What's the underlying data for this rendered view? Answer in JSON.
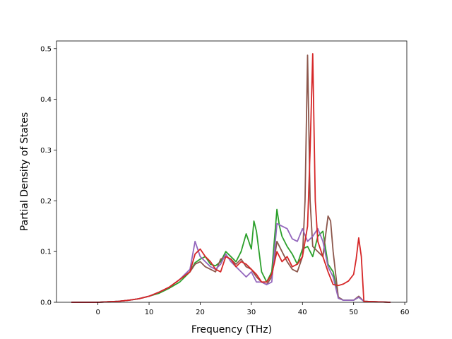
{
  "chart_data": {
    "type": "line",
    "xlabel": "Frequency (THz)",
    "ylabel": "Partial Density of States",
    "xlim": [
      -8.1,
      60.4
    ],
    "ylim": [
      0,
      0.515
    ],
    "xticks": [
      0,
      10,
      20,
      30,
      40,
      50,
      60
    ],
    "yticks": [
      0.0,
      0.1,
      0.2,
      0.3,
      0.4,
      0.5
    ],
    "xtick_labels": [
      "0",
      "10",
      "20",
      "30",
      "40",
      "50",
      "60"
    ],
    "ytick_labels": [
      "0.0",
      "0.1",
      "0.2",
      "0.3",
      "0.4",
      "0.5"
    ],
    "grid": false,
    "legend": "none",
    "series": [
      {
        "color": "#2ca02c",
        "points": [
          [
            -5.2,
            0
          ],
          [
            0,
            0
          ],
          [
            2,
            0.001
          ],
          [
            4,
            0.002
          ],
          [
            6,
            0.004
          ],
          [
            8,
            0.007
          ],
          [
            10,
            0.012
          ],
          [
            12,
            0.018
          ],
          [
            14,
            0.028
          ],
          [
            16,
            0.04
          ],
          [
            17,
            0.05
          ],
          [
            18,
            0.06
          ],
          [
            19,
            0.078
          ],
          [
            20,
            0.085
          ],
          [
            21,
            0.09
          ],
          [
            22,
            0.075
          ],
          [
            23,
            0.072
          ],
          [
            24,
            0.08
          ],
          [
            25,
            0.1
          ],
          [
            26,
            0.09
          ],
          [
            27,
            0.08
          ],
          [
            28,
            0.1
          ],
          [
            29,
            0.135
          ],
          [
            30,
            0.105
          ],
          [
            30.5,
            0.16
          ],
          [
            31,
            0.14
          ],
          [
            32,
            0.06
          ],
          [
            33,
            0.04
          ],
          [
            34,
            0.06
          ],
          [
            35,
            0.183
          ],
          [
            35.5,
            0.15
          ],
          [
            36,
            0.13
          ],
          [
            37,
            0.11
          ],
          [
            38,
            0.095
          ],
          [
            39,
            0.075
          ],
          [
            40,
            0.105
          ],
          [
            41,
            0.11
          ],
          [
            42,
            0.09
          ],
          [
            43,
            0.13
          ],
          [
            44,
            0.14
          ],
          [
            45,
            0.075
          ],
          [
            46,
            0.06
          ],
          [
            47,
            0.01
          ],
          [
            48,
            0.004
          ],
          [
            50,
            0.004
          ],
          [
            51,
            0.01
          ],
          [
            52,
            0.002
          ],
          [
            57.2,
            0
          ]
        ]
      },
      {
        "color": "#8c564b",
        "points": [
          [
            -5.2,
            0
          ],
          [
            0,
            0
          ],
          [
            2,
            0.001
          ],
          [
            4,
            0.002
          ],
          [
            6,
            0.004
          ],
          [
            8,
            0.007
          ],
          [
            10,
            0.012
          ],
          [
            12,
            0.02
          ],
          [
            14,
            0.03
          ],
          [
            16,
            0.045
          ],
          [
            18,
            0.06
          ],
          [
            19,
            0.075
          ],
          [
            20,
            0.08
          ],
          [
            21,
            0.07
          ],
          [
            22,
            0.065
          ],
          [
            23,
            0.06
          ],
          [
            24,
            0.085
          ],
          [
            25,
            0.09
          ],
          [
            26,
            0.085
          ],
          [
            27,
            0.075
          ],
          [
            28,
            0.085
          ],
          [
            29,
            0.07
          ],
          [
            30,
            0.065
          ],
          [
            31,
            0.05
          ],
          [
            32,
            0.04
          ],
          [
            33,
            0.035
          ],
          [
            34,
            0.05
          ],
          [
            35,
            0.12
          ],
          [
            36,
            0.1
          ],
          [
            37,
            0.08
          ],
          [
            38,
            0.065
          ],
          [
            39,
            0.06
          ],
          [
            40,
            0.09
          ],
          [
            40.5,
            0.2
          ],
          [
            41,
            0.487
          ],
          [
            41.5,
            0.2
          ],
          [
            42,
            0.11
          ],
          [
            43,
            0.1
          ],
          [
            44,
            0.09
          ],
          [
            45,
            0.17
          ],
          [
            45.5,
            0.16
          ],
          [
            46,
            0.1
          ],
          [
            47,
            0.01
          ],
          [
            48,
            0.004
          ],
          [
            50,
            0.004
          ],
          [
            51,
            0.012
          ],
          [
            52,
            0.002
          ],
          [
            57.2,
            0
          ]
        ]
      },
      {
        "color": "#9467bd",
        "points": [
          [
            -5.2,
            0
          ],
          [
            0,
            0
          ],
          [
            2,
            0.001
          ],
          [
            4,
            0.002
          ],
          [
            6,
            0.004
          ],
          [
            8,
            0.007
          ],
          [
            10,
            0.012
          ],
          [
            12,
            0.02
          ],
          [
            14,
            0.03
          ],
          [
            16,
            0.045
          ],
          [
            18,
            0.065
          ],
          [
            19,
            0.12
          ],
          [
            20,
            0.09
          ],
          [
            21,
            0.08
          ],
          [
            22,
            0.07
          ],
          [
            23,
            0.065
          ],
          [
            24,
            0.075
          ],
          [
            25,
            0.095
          ],
          [
            26,
            0.08
          ],
          [
            27,
            0.07
          ],
          [
            28,
            0.06
          ],
          [
            29,
            0.05
          ],
          [
            30,
            0.06
          ],
          [
            31,
            0.04
          ],
          [
            32,
            0.04
          ],
          [
            33,
            0.035
          ],
          [
            34,
            0.04
          ],
          [
            35,
            0.155
          ],
          [
            36,
            0.15
          ],
          [
            37,
            0.145
          ],
          [
            38,
            0.125
          ],
          [
            39,
            0.12
          ],
          [
            40,
            0.145
          ],
          [
            41,
            0.12
          ],
          [
            42,
            0.13
          ],
          [
            43,
            0.145
          ],
          [
            44,
            0.12
          ],
          [
            45,
            0.07
          ],
          [
            46,
            0.05
          ],
          [
            47,
            0.008
          ],
          [
            48,
            0.004
          ],
          [
            50,
            0.004
          ],
          [
            51,
            0.01
          ],
          [
            52,
            0.002
          ],
          [
            57.2,
            0
          ]
        ]
      },
      {
        "color": "#d62728",
        "points": [
          [
            -5.2,
            0
          ],
          [
            0,
            0
          ],
          [
            2,
            0.001
          ],
          [
            4,
            0.002
          ],
          [
            6,
            0.004
          ],
          [
            8,
            0.007
          ],
          [
            10,
            0.012
          ],
          [
            12,
            0.02
          ],
          [
            14,
            0.03
          ],
          [
            16,
            0.045
          ],
          [
            18,
            0.06
          ],
          [
            19,
            0.095
          ],
          [
            20,
            0.105
          ],
          [
            21,
            0.09
          ],
          [
            22,
            0.08
          ],
          [
            23,
            0.065
          ],
          [
            24,
            0.06
          ],
          [
            25,
            0.09
          ],
          [
            26,
            0.085
          ],
          [
            27,
            0.07
          ],
          [
            28,
            0.08
          ],
          [
            29,
            0.075
          ],
          [
            30,
            0.065
          ],
          [
            31,
            0.055
          ],
          [
            32,
            0.04
          ],
          [
            33,
            0.04
          ],
          [
            34,
            0.055
          ],
          [
            35,
            0.1
          ],
          [
            36,
            0.08
          ],
          [
            37,
            0.09
          ],
          [
            38,
            0.07
          ],
          [
            39,
            0.075
          ],
          [
            40,
            0.09
          ],
          [
            41,
            0.15
          ],
          [
            41.5,
            0.3
          ],
          [
            42,
            0.49
          ],
          [
            42.5,
            0.2
          ],
          [
            43,
            0.12
          ],
          [
            44,
            0.09
          ],
          [
            45,
            0.06
          ],
          [
            46,
            0.035
          ],
          [
            47,
            0.033
          ],
          [
            48,
            0.036
          ],
          [
            49,
            0.042
          ],
          [
            50,
            0.055
          ],
          [
            50.5,
            0.085
          ],
          [
            51,
            0.127
          ],
          [
            51.5,
            0.09
          ],
          [
            52,
            0.002
          ],
          [
            57.2,
            0
          ]
        ]
      }
    ]
  }
}
